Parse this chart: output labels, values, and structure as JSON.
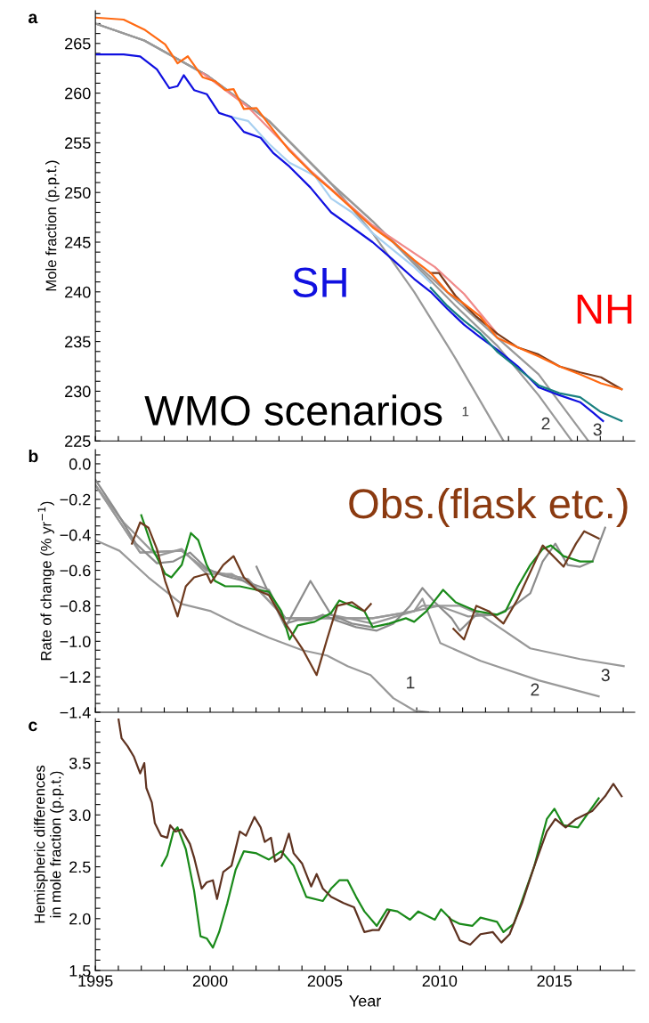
{
  "chart_data": [
    {
      "type": "line",
      "ylabel": "Mole fraction (p.p.t.)",
      "xlim": [
        1995,
        2018.5
      ],
      "ylim": [
        225,
        268.3
      ],
      "tick_labels": "y",
      "grid": false,
      "legend": false,
      "marker": "none",
      "line_style": "solid",
      "xticks": [
        {
          "value": 1995,
          "label": null
        },
        {
          "value": 1996,
          "label": null
        },
        {
          "value": 1997,
          "label": null
        },
        {
          "value": 1998,
          "label": null
        },
        {
          "value": 1999,
          "label": null
        },
        {
          "value": 2000,
          "label": null
        },
        {
          "value": 2001,
          "label": null
        },
        {
          "value": 2002,
          "label": null
        },
        {
          "value": 2003,
          "label": null
        },
        {
          "value": 2004,
          "label": null
        },
        {
          "value": 2005,
          "label": null
        },
        {
          "value": 2006,
          "label": null
        },
        {
          "value": 2007,
          "label": null
        },
        {
          "value": 2008,
          "label": null
        },
        {
          "value": 2009,
          "label": null
        },
        {
          "value": 2010,
          "label": null
        },
        {
          "value": 2011,
          "label": null
        },
        {
          "value": 2012,
          "label": null
        },
        {
          "value": 2013,
          "label": null
        },
        {
          "value": 2014,
          "label": null
        },
        {
          "value": 2015,
          "label": null
        },
        {
          "value": 2016,
          "label": null
        },
        {
          "value": 2017,
          "label": null
        },
        {
          "value": 2018,
          "label": null
        }
      ],
      "yticks": [
        225,
        {
          "value": 226,
          "label": null
        },
        {
          "value": 227,
          "label": null
        },
        {
          "value": 228,
          "label": null
        },
        {
          "value": 229,
          "label": null
        },
        230,
        {
          "value": 231,
          "label": null
        },
        {
          "value": 232,
          "label": null
        },
        {
          "value": 233,
          "label": null
        },
        {
          "value": 234,
          "label": null
        },
        235,
        {
          "value": 236,
          "label": null
        },
        {
          "value": 237,
          "label": null
        },
        {
          "value": 238,
          "label": null
        },
        {
          "value": 239,
          "label": null
        },
        240,
        {
          "value": 241,
          "label": null
        },
        {
          "value": 242,
          "label": null
        },
        {
          "value": 243,
          "label": null
        },
        {
          "value": 244,
          "label": null
        },
        245,
        {
          "value": 246,
          "label": null
        },
        {
          "value": 247,
          "label": null
        },
        {
          "value": 248,
          "label": null
        },
        {
          "value": 249,
          "label": null
        },
        250,
        {
          "value": 251,
          "label": null
        },
        {
          "value": 252,
          "label": null
        },
        {
          "value": 253,
          "label": null
        },
        {
          "value": 254,
          "label": null
        },
        255,
        {
          "value": 256,
          "label": null
        },
        {
          "value": 257,
          "label": null
        },
        {
          "value": 258,
          "label": null
        },
        {
          "value": 259,
          "label": null
        },
        260,
        {
          "value": 261,
          "label": null
        },
        {
          "value": 262,
          "label": null
        },
        {
          "value": 263,
          "label": null
        },
        {
          "value": 264,
          "label": null
        },
        265,
        {
          "value": 266,
          "label": null
        },
        {
          "value": 267,
          "label": null
        },
        {
          "value": 268,
          "label": null
        }
      ],
      "series": [
        {
          "color": "#999999",
          "x": [
            1995,
            1997.13,
            1999.85,
            2002.56,
            2005.27,
            2007.08,
            2008.89,
            2010.69,
            2012.78
          ],
          "values": [
            267.0,
            265.3,
            261.8,
            257.2,
            250.9,
            245.9,
            240.0,
            233.3,
            225.0
          ]
        },
        {
          "color": "#999999",
          "x": [
            1995,
            1997.13,
            1999.85,
            2002.56,
            2005.27,
            2007.08,
            2008.89,
            2010.69,
            2012.5,
            2014.31,
            2015.76
          ],
          "values": [
            267.0,
            265.3,
            261.8,
            257.2,
            250.9,
            247.1,
            242.8,
            238.6,
            234.6,
            229.6,
            225.0
          ]
        },
        {
          "color": "#999999",
          "x": [
            1995,
            1997.13,
            1999.85,
            2002.56,
            2005.27,
            2007.08,
            2008.89,
            2010.69,
            2012.5,
            2014.31,
            2016.48
          ],
          "values": [
            267.0,
            265.3,
            261.8,
            257.2,
            250.9,
            247.1,
            243.0,
            239.2,
            235.4,
            231.7,
            225.0
          ]
        },
        {
          "color": "#a8d0f0",
          "x": [
            2000.93,
            2001.65,
            2002.56,
            2003.46,
            2004.55,
            2005.27,
            2006.18,
            2007.08,
            2007.98,
            2008.89,
            2009.61
          ],
          "values": [
            257.6,
            257.2,
            254.9,
            253.0,
            251.7,
            249.4,
            248.0,
            245.9,
            244.2,
            242.5,
            240.9
          ]
        },
        {
          "color": "#1010e0",
          "x": [
            1995,
            1996.23,
            1996.95,
            1997.68,
            1998.22,
            1998.58,
            1998.85,
            1999.3,
            1999.85,
            2000.39,
            2000.93,
            2001.47,
            2002.2,
            2002.74,
            2003.46,
            2004.37,
            2005.27,
            2006.18,
            2007.08,
            2007.98,
            2008.89,
            2009.61,
            2010.33,
            2011.06,
            2011.78,
            2012.5,
            2013.41,
            2014.31,
            2015.22,
            2016.12,
            2016.66,
            2017.12
          ],
          "values": [
            263.9,
            263.9,
            263.7,
            262.4,
            260.5,
            260.7,
            261.8,
            260.3,
            259.9,
            258.0,
            257.6,
            256.1,
            255.5,
            254.0,
            252.6,
            250.5,
            248.0,
            246.5,
            245.0,
            243.2,
            241.3,
            240.0,
            238.3,
            236.7,
            235.4,
            234.2,
            232.5,
            230.4,
            229.6,
            228.9,
            227.9,
            227.0
          ]
        },
        {
          "color": "#1a8080",
          "x": [
            2009.61,
            2010.33,
            2011.06,
            2011.78,
            2012.5,
            2013.41,
            2014.31,
            2015.22,
            2016.12,
            2017.03,
            2017.93
          ],
          "values": [
            240.4,
            238.6,
            237.1,
            235.8,
            234.0,
            232.3,
            230.6,
            229.8,
            229.4,
            227.9,
            227.0
          ]
        },
        {
          "color": "#f08a8a",
          "x": [
            1999.67,
            2001.65,
            2004.37,
            2007.08,
            2009.79,
            2011.06,
            2012.5
          ],
          "values": [
            262.0,
            258.6,
            252.2,
            246.7,
            242.5,
            239.8,
            235.8
          ]
        },
        {
          "color": "#7a3a1a",
          "x": [
            2009.61,
            2009.97,
            2010.69,
            2011.6,
            2012.5,
            2013.41,
            2014.31,
            2015.22,
            2016.12,
            2017.03,
            2017.93
          ],
          "values": [
            241.9,
            241.9,
            239.6,
            237.5,
            235.8,
            234.4,
            233.7,
            232.5,
            231.9,
            231.4,
            230.2
          ]
        },
        {
          "color": "#ff6a13",
          "x": [
            1995,
            1996.23,
            1997.13,
            1998.04,
            1998.58,
            1999.03,
            1999.67,
            2000.21,
            2000.66,
            2001.02,
            2001.47,
            2002.02,
            2002.74,
            2003.46,
            2004.55,
            2005.27,
            2006.18,
            2007.08,
            2007.98,
            2008.89,
            2009.61,
            2010.33,
            2011.06,
            2011.78,
            2012.5,
            2013.41,
            2014.31,
            2015.22,
            2016.12,
            2017.03,
            2017.93
          ],
          "values": [
            267.6,
            267.4,
            266.4,
            264.9,
            263.0,
            263.7,
            261.6,
            261.2,
            260.3,
            260.4,
            258.4,
            258.5,
            256.3,
            254.2,
            251.7,
            250.3,
            248.4,
            246.5,
            245.0,
            243.2,
            241.9,
            240.0,
            238.8,
            237.5,
            235.4,
            234.4,
            233.5,
            232.5,
            231.7,
            230.8,
            230.2
          ]
        }
      ],
      "annotations": [
        "a",
        "SH",
        "NH",
        "WMO scenarios",
        "1",
        "2",
        "3"
      ]
    },
    {
      "type": "line",
      "ylabel": "Rate of change (% yr$^{−1}$)",
      "xlim": [
        1995,
        2018.5
      ],
      "ylim": [
        -1.4,
        0.08
      ],
      "tick_labels": "y",
      "grid": false,
      "legend": false,
      "marker": "none",
      "line_style": "solid",
      "xticks": [
        {
          "value": 1995,
          "label": null
        },
        {
          "value": 1996,
          "label": null
        },
        {
          "value": 1997,
          "label": null
        },
        {
          "value": 1998,
          "label": null
        },
        {
          "value": 1999,
          "label": null
        },
        {
          "value": 2000,
          "label": null
        },
        {
          "value": 2001,
          "label": null
        },
        {
          "value": 2002,
          "label": null
        },
        {
          "value": 2003,
          "label": null
        },
        {
          "value": 2004,
          "label": null
        },
        {
          "value": 2005,
          "label": null
        },
        {
          "value": 2006,
          "label": null
        },
        {
          "value": 2007,
          "label": null
        },
        {
          "value": 2008,
          "label": null
        },
        {
          "value": 2009,
          "label": null
        },
        {
          "value": 2010,
          "label": null
        },
        {
          "value": 2011,
          "label": null
        },
        {
          "value": 2012,
          "label": null
        },
        {
          "value": 2013,
          "label": null
        },
        {
          "value": 2014,
          "label": null
        },
        {
          "value": 2015,
          "label": null
        },
        {
          "value": 2016,
          "label": null
        },
        {
          "value": 2017,
          "label": null
        },
        {
          "value": 2018,
          "label": null
        }
      ],
      "yticks": [
        {
          "value": -1.4,
          "label": "−1.4"
        },
        {
          "value": -1.35,
          "label": null
        },
        {
          "value": -1.3,
          "label": null
        },
        {
          "value": -1.25,
          "label": null
        },
        {
          "value": -1.2,
          "label": "−1.2"
        },
        {
          "value": -1.15,
          "label": null
        },
        {
          "value": -1.1,
          "label": null
        },
        {
          "value": -1.05,
          "label": null
        },
        {
          "value": -1.0,
          "label": "−1.0"
        },
        {
          "value": -0.95,
          "label": null
        },
        {
          "value": -0.9,
          "label": null
        },
        {
          "value": -0.85,
          "label": null
        },
        {
          "value": -0.8,
          "label": "−0.8"
        },
        {
          "value": -0.75,
          "label": null
        },
        {
          "value": -0.7,
          "label": null
        },
        {
          "value": -0.65,
          "label": null
        },
        {
          "value": -0.6,
          "label": "−0.6"
        },
        {
          "value": -0.55,
          "label": null
        },
        {
          "value": -0.5,
          "label": null
        },
        {
          "value": -0.45,
          "label": null
        },
        {
          "value": -0.4,
          "label": "−0.4"
        },
        {
          "value": -0.35,
          "label": null
        },
        {
          "value": -0.3,
          "label": null
        },
        {
          "value": -0.25,
          "label": null
        },
        {
          "value": -0.2,
          "label": "−0.2"
        },
        {
          "value": -0.15,
          "label": null
        },
        {
          "value": -0.1,
          "label": null
        },
        {
          "value": -0.05,
          "label": null
        },
        {
          "value": 0.0,
          "label": "0.0"
        },
        {
          "value": 0.05,
          "label": null
        }
      ],
      "series": [
        {
          "color": "#999999",
          "x": [
            1995,
            1996.05,
            1997.31,
            1998.76,
            2000.03,
            2001.11,
            2002.56,
            2004.01,
            2005.09,
            2005.99,
            2006.99,
            2007.98,
            2008.89,
            2009.5
          ],
          "values": [
            -0.43,
            -0.49,
            -0.64,
            -0.79,
            -0.83,
            -0.9,
            -0.98,
            -1.05,
            -1.08,
            -1.14,
            -1.19,
            -1.32,
            -1.39,
            -1.4
          ]
        },
        {
          "color": "#999999",
          "x": [
            1995,
            1996.95,
            1998.76,
            1999.85,
            2001.65,
            2003.28,
            2005.27,
            2007.08,
            2008.89,
            2009.25,
            2010.03,
            2011.78,
            2014.31,
            2016.93
          ],
          "values": [
            -0.12,
            -0.5,
            -0.49,
            -0.6,
            -0.65,
            -0.87,
            -0.87,
            -0.87,
            -0.83,
            -0.76,
            -1.01,
            -1.11,
            -1.22,
            -1.31
          ]
        },
        {
          "color": "#999999",
          "x": [
            1995,
            1996.95,
            1998.76,
            1999.85,
            2001.65,
            2003.28,
            2005.27,
            2007.08,
            2008.89,
            2009.25,
            2010.03,
            2010.88,
            2011.78,
            2013.95,
            2016.12,
            2018.02
          ],
          "values": [
            -0.12,
            -0.5,
            -0.49,
            -0.6,
            -0.65,
            -0.87,
            -0.87,
            -0.87,
            -0.83,
            -0.8,
            -0.8,
            -0.8,
            -0.85,
            -1.04,
            -1.1,
            -1.14
          ]
        },
        {
          "color": "#999999",
          "x": [
            1995,
            1996.23,
            1997.68,
            1998.76,
            1999.85,
            2000.93,
            2001.84,
            2002.56,
            2003.28,
            2004.37,
            2005.27,
            2007.08,
            2008.89,
            2009.97,
            2011.24,
            2012.5
          ],
          "values": [
            -0.12,
            -0.33,
            -0.52,
            -0.48,
            -0.62,
            -0.62,
            -0.69,
            -0.73,
            -0.87,
            -0.87,
            -0.85,
            -0.9,
            -0.83,
            -0.8,
            -0.86,
            -0.85
          ]
        },
        {
          "color": "#8c8c8c",
          "x": [
            2002.02,
            2002.56,
            2003.28,
            2004.37,
            2005.27,
            2006.18,
            2007.08
          ],
          "values": [
            -0.58,
            -0.73,
            -0.92,
            -0.66,
            -0.85,
            -0.9,
            -0.92
          ]
        },
        {
          "color": "#8c8c8c",
          "x": [
            1995,
            1995.87,
            1996.77,
            1997.68,
            1998.4,
            1999.12,
            1999.85,
            2000.57,
            2001.47,
            2002.56,
            2003.28,
            2003.82,
            2004.37,
            2004.91,
            2005.45,
            2006.36,
            2007.26,
            2007.98,
            2008.71,
            2009.25,
            2009.79,
            2010.52,
            2010.88,
            2011.6,
            2012.5,
            2013.23,
            2013.95,
            2014.49,
            2015.04,
            2015.58,
            2016.12,
            2016.66,
            2017.21
          ],
          "values": [
            -0.09,
            -0.26,
            -0.45,
            -0.56,
            -0.55,
            -0.5,
            -0.59,
            -0.63,
            -0.66,
            -0.71,
            -0.9,
            -0.88,
            -0.88,
            -0.85,
            -0.88,
            -0.92,
            -0.94,
            -0.9,
            -0.8,
            -0.7,
            -0.78,
            -0.87,
            -0.94,
            -0.85,
            -0.85,
            -0.8,
            -0.73,
            -0.55,
            -0.45,
            -0.57,
            -0.58,
            -0.55,
            -0.36
          ]
        },
        {
          "color": "#1a8a1a",
          "x": [
            1997.0,
            1997.5,
            1998.04,
            1998.31,
            1998.76,
            1999.16,
            1999.48,
            1999.85,
            2000.21,
            2000.66,
            2001.29,
            2002.02,
            2002.56,
            2003.1,
            2003.46,
            2003.82,
            2004.55,
            2005.27,
            2005.63,
            2006.18,
            2006.72,
            2007.08,
            2007.8,
            2008.53,
            2008.89,
            2009.43,
            2010.15,
            2010.7,
            2011.6,
            2012.5,
            2012.87,
            2013.41,
            2013.95,
            2014.49,
            2014.85,
            2015.4,
            2016.12,
            2016.66
          ],
          "values": [
            -0.29,
            -0.48,
            -0.62,
            -0.64,
            -0.57,
            -0.39,
            -0.43,
            -0.57,
            -0.66,
            -0.69,
            -0.69,
            -0.71,
            -0.72,
            -0.83,
            -0.99,
            -0.91,
            -0.89,
            -0.84,
            -0.77,
            -0.8,
            -0.83,
            -0.92,
            -0.9,
            -0.87,
            -0.89,
            -0.83,
            -0.71,
            -0.78,
            -0.83,
            -0.85,
            -0.83,
            -0.69,
            -0.57,
            -0.48,
            -0.46,
            -0.52,
            -0.55,
            -0.55
          ]
        },
        {
          "color": "#6e3a1e",
          "x": [
            1996.59,
            1996.95,
            1997.31,
            1997.68,
            1998.04,
            1998.58,
            1998.94,
            1999.3,
            1999.85,
            2000.03,
            2000.57,
            2001.02,
            2001.47,
            2002.02,
            2002.56,
            2003.28,
            2004.01,
            2004.64,
            2005.09,
            2005.54,
            2006.18,
            2006.72,
            2007.0,
            2008.0,
            2010.6,
            2011.06,
            2011.6,
            2012.14,
            2012.78,
            2013.41,
            2014.49,
            2015.4,
            2015.94,
            2016.3,
            2016.93
          ],
          "values": [
            -0.45,
            -0.33,
            -0.36,
            -0.48,
            -0.66,
            -0.86,
            -0.69,
            -0.64,
            -0.62,
            -0.67,
            -0.57,
            -0.52,
            -0.64,
            -0.71,
            -0.74,
            -0.9,
            -1.04,
            -1.19,
            -0.99,
            -0.8,
            -0.78,
            -0.83,
            -0.79,
            null,
            -0.93,
            -0.99,
            -0.8,
            -0.83,
            -0.9,
            -0.76,
            -0.46,
            -0.58,
            -0.45,
            -0.38,
            -0.42
          ]
        }
      ],
      "annotations": [
        "b",
        "Obs.(flask etc.)",
        "1",
        "2",
        "3"
      ]
    },
    {
      "type": "line",
      "xlabel": "Year",
      "ylabel": "Hemispheric differences\nin mole fraction (p.p.t.)",
      "xlim": [
        1995,
        2018.5
      ],
      "ylim": [
        1.5,
        3.93
      ],
      "grid": false,
      "legend": false,
      "marker": "none",
      "line_style": "solid",
      "xticks": [
        1995,
        {
          "value": 1996,
          "label": null
        },
        {
          "value": 1997,
          "label": null
        },
        {
          "value": 1998,
          "label": null
        },
        {
          "value": 1999,
          "label": null
        },
        2000,
        {
          "value": 2001,
          "label": null
        },
        {
          "value": 2002,
          "label": null
        },
        {
          "value": 2003,
          "label": null
        },
        {
          "value": 2004,
          "label": null
        },
        2005,
        {
          "value": 2006,
          "label": null
        },
        {
          "value": 2007,
          "label": null
        },
        {
          "value": 2008,
          "label": null
        },
        {
          "value": 2009,
          "label": null
        },
        2010,
        {
          "value": 2011,
          "label": null
        },
        {
          "value": 2012,
          "label": null
        },
        {
          "value": 2013,
          "label": null
        },
        {
          "value": 2014,
          "label": null
        },
        2015,
        {
          "value": 2016,
          "label": null
        },
        {
          "value": 2017,
          "label": null
        },
        {
          "value": 2018,
          "label": null
        }
      ],
      "yticks": [
        1.5,
        {
          "value": 1.6,
          "label": null
        },
        {
          "value": 1.7,
          "label": null
        },
        {
          "value": 1.8,
          "label": null
        },
        {
          "value": 1.9,
          "label": null
        },
        {
          "value": 2.0,
          "label": "2.0"
        },
        {
          "value": 2.1,
          "label": null
        },
        {
          "value": 2.2,
          "label": null
        },
        {
          "value": 2.3,
          "label": null
        },
        {
          "value": 2.4,
          "label": null
        },
        2.5,
        {
          "value": 2.6,
          "label": null
        },
        {
          "value": 2.7,
          "label": null
        },
        {
          "value": 2.8,
          "label": null
        },
        {
          "value": 2.9,
          "label": null
        },
        {
          "value": 3.0,
          "label": "3.0"
        },
        {
          "value": 3.1,
          "label": null
        },
        {
          "value": 3.2,
          "label": null
        },
        {
          "value": 3.3,
          "label": null
        },
        {
          "value": 3.4,
          "label": null
        },
        3.5,
        {
          "value": 3.6,
          "label": null
        },
        {
          "value": 3.7,
          "label": null
        },
        {
          "value": 3.8,
          "label": null
        },
        {
          "value": 3.9,
          "label": null
        }
      ],
      "series": [
        {
          "color": "#1a8a1a",
          "x": [
            1997.89,
            1998.13,
            1998.4,
            1998.58,
            1998.94,
            1999.3,
            1999.58,
            1999.85,
            2000.12,
            2000.39,
            2000.75,
            2001.11,
            2001.47,
            2002.02,
            2002.56,
            2003.1,
            2003.64,
            2004.19,
            2004.91,
            2005.27,
            2005.63,
            2005.99,
            2006.36,
            2006.72,
            2007.26,
            2007.71,
            2008.16,
            2008.71,
            2009.07,
            2009.79,
            2010.06,
            2010.51,
            2010.88,
            2011.42,
            2011.78,
            2012.5,
            2012.78,
            2013.23,
            2014.13,
            2014.67,
            2015.0,
            2015.4,
            2016.03,
            2016.48,
            2016.93
          ],
          "values": [
            2.51,
            2.61,
            2.84,
            2.88,
            2.67,
            2.27,
            1.83,
            1.81,
            1.72,
            1.87,
            2.15,
            2.47,
            2.65,
            2.63,
            2.57,
            2.65,
            2.51,
            2.21,
            2.17,
            2.29,
            2.37,
            2.37,
            2.21,
            2.07,
            1.93,
            2.09,
            2.07,
            1.99,
            2.07,
            1.99,
            2.09,
            1.99,
            1.95,
            1.93,
            2.01,
            1.97,
            1.87,
            1.95,
            2.51,
            2.96,
            3.06,
            2.9,
            2.88,
            3.02,
            3.16
          ]
        },
        {
          "color": "#5e3220",
          "x": [
            1996.01,
            1996.14,
            1996.41,
            1996.68,
            1996.95,
            1997.13,
            1997.22,
            1997.46,
            1997.59,
            1997.86,
            1998.13,
            1998.26,
            1998.49,
            1998.76,
            1999.12,
            1999.3,
            1999.63,
            1999.85,
            2000.12,
            2000.3,
            2000.57,
            2000.93,
            2001.29,
            2001.56,
            2001.93,
            2002.2,
            2002.38,
            2002.65,
            2002.83,
            2003.1,
            2003.43,
            2003.64,
            2004.01,
            2004.4,
            2004.64,
            2004.91,
            2005.27,
            2005.81,
            2006.27,
            2006.72,
            2007.08,
            2007.35,
            2007.8,
            2009.0,
            2010.42,
            2010.88,
            2011.33,
            2011.78,
            2012.32,
            2012.69,
            2013.05,
            2013.59,
            2014.13,
            2014.67,
            2015.04,
            2015.49,
            2015.94,
            2016.66,
            2017.21,
            2017.57,
            2017.93
          ],
          "values": [
            3.92,
            3.74,
            3.66,
            3.56,
            3.4,
            3.5,
            3.26,
            3.12,
            2.92,
            2.8,
            2.78,
            2.9,
            2.84,
            2.86,
            2.72,
            2.59,
            2.29,
            2.35,
            2.37,
            2.19,
            2.45,
            2.51,
            2.84,
            2.8,
            2.98,
            2.88,
            2.74,
            2.78,
            2.55,
            2.59,
            2.82,
            2.63,
            2.53,
            2.31,
            2.43,
            2.29,
            2.21,
            2.15,
            2.11,
            1.87,
            1.89,
            1.89,
            2.07,
            null,
            2.01,
            1.79,
            1.75,
            1.85,
            1.87,
            1.77,
            1.85,
            2.15,
            2.51,
            2.84,
            2.96,
            2.88,
            2.96,
            3.04,
            3.18,
            3.3,
            3.18
          ]
        }
      ],
      "annotations": [
        "c"
      ]
    }
  ]
}
